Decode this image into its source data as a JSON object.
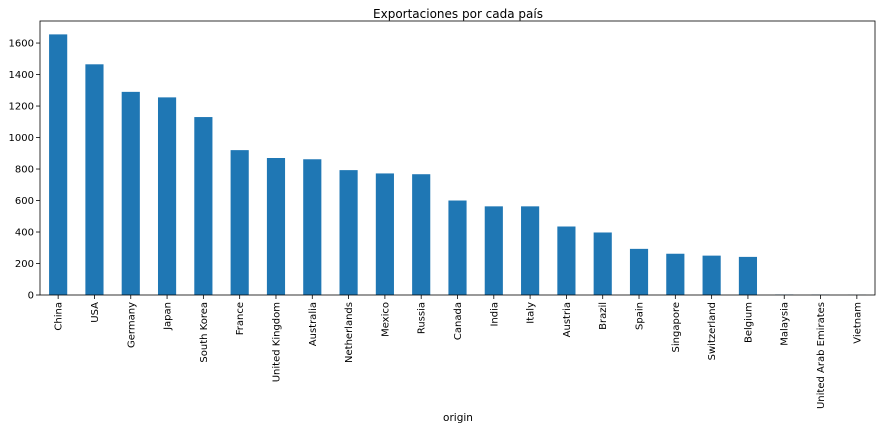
{
  "chart_data": {
    "type": "bar",
    "title": "Exportaciones por cada país",
    "xlabel": "origin",
    "ylabel": "",
    "ylim": [
      0,
      1740
    ],
    "yticks": [
      0,
      200,
      400,
      600,
      800,
      1000,
      1200,
      1400,
      1600
    ],
    "grid": false,
    "legend": "none",
    "bar_color": "#1f77b4",
    "categories": [
      "China",
      "USA",
      "Germany",
      "Japan",
      "South Korea",
      "France",
      "United Kingdom",
      "Australia",
      "Netherlands",
      "Mexico",
      "Russia",
      "Canada",
      "India",
      "Italy",
      "Austria",
      "Brazil",
      "Spain",
      "Singapore",
      "Switzerland",
      "Belgium",
      "Malaysia",
      "United Arab Emirates",
      "Vietnam"
    ],
    "values": [
      1655,
      1465,
      1290,
      1255,
      1130,
      920,
      870,
      862,
      793,
      772,
      767,
      600,
      563,
      563,
      435,
      397,
      293,
      262,
      250,
      242,
      3,
      2,
      1
    ]
  }
}
